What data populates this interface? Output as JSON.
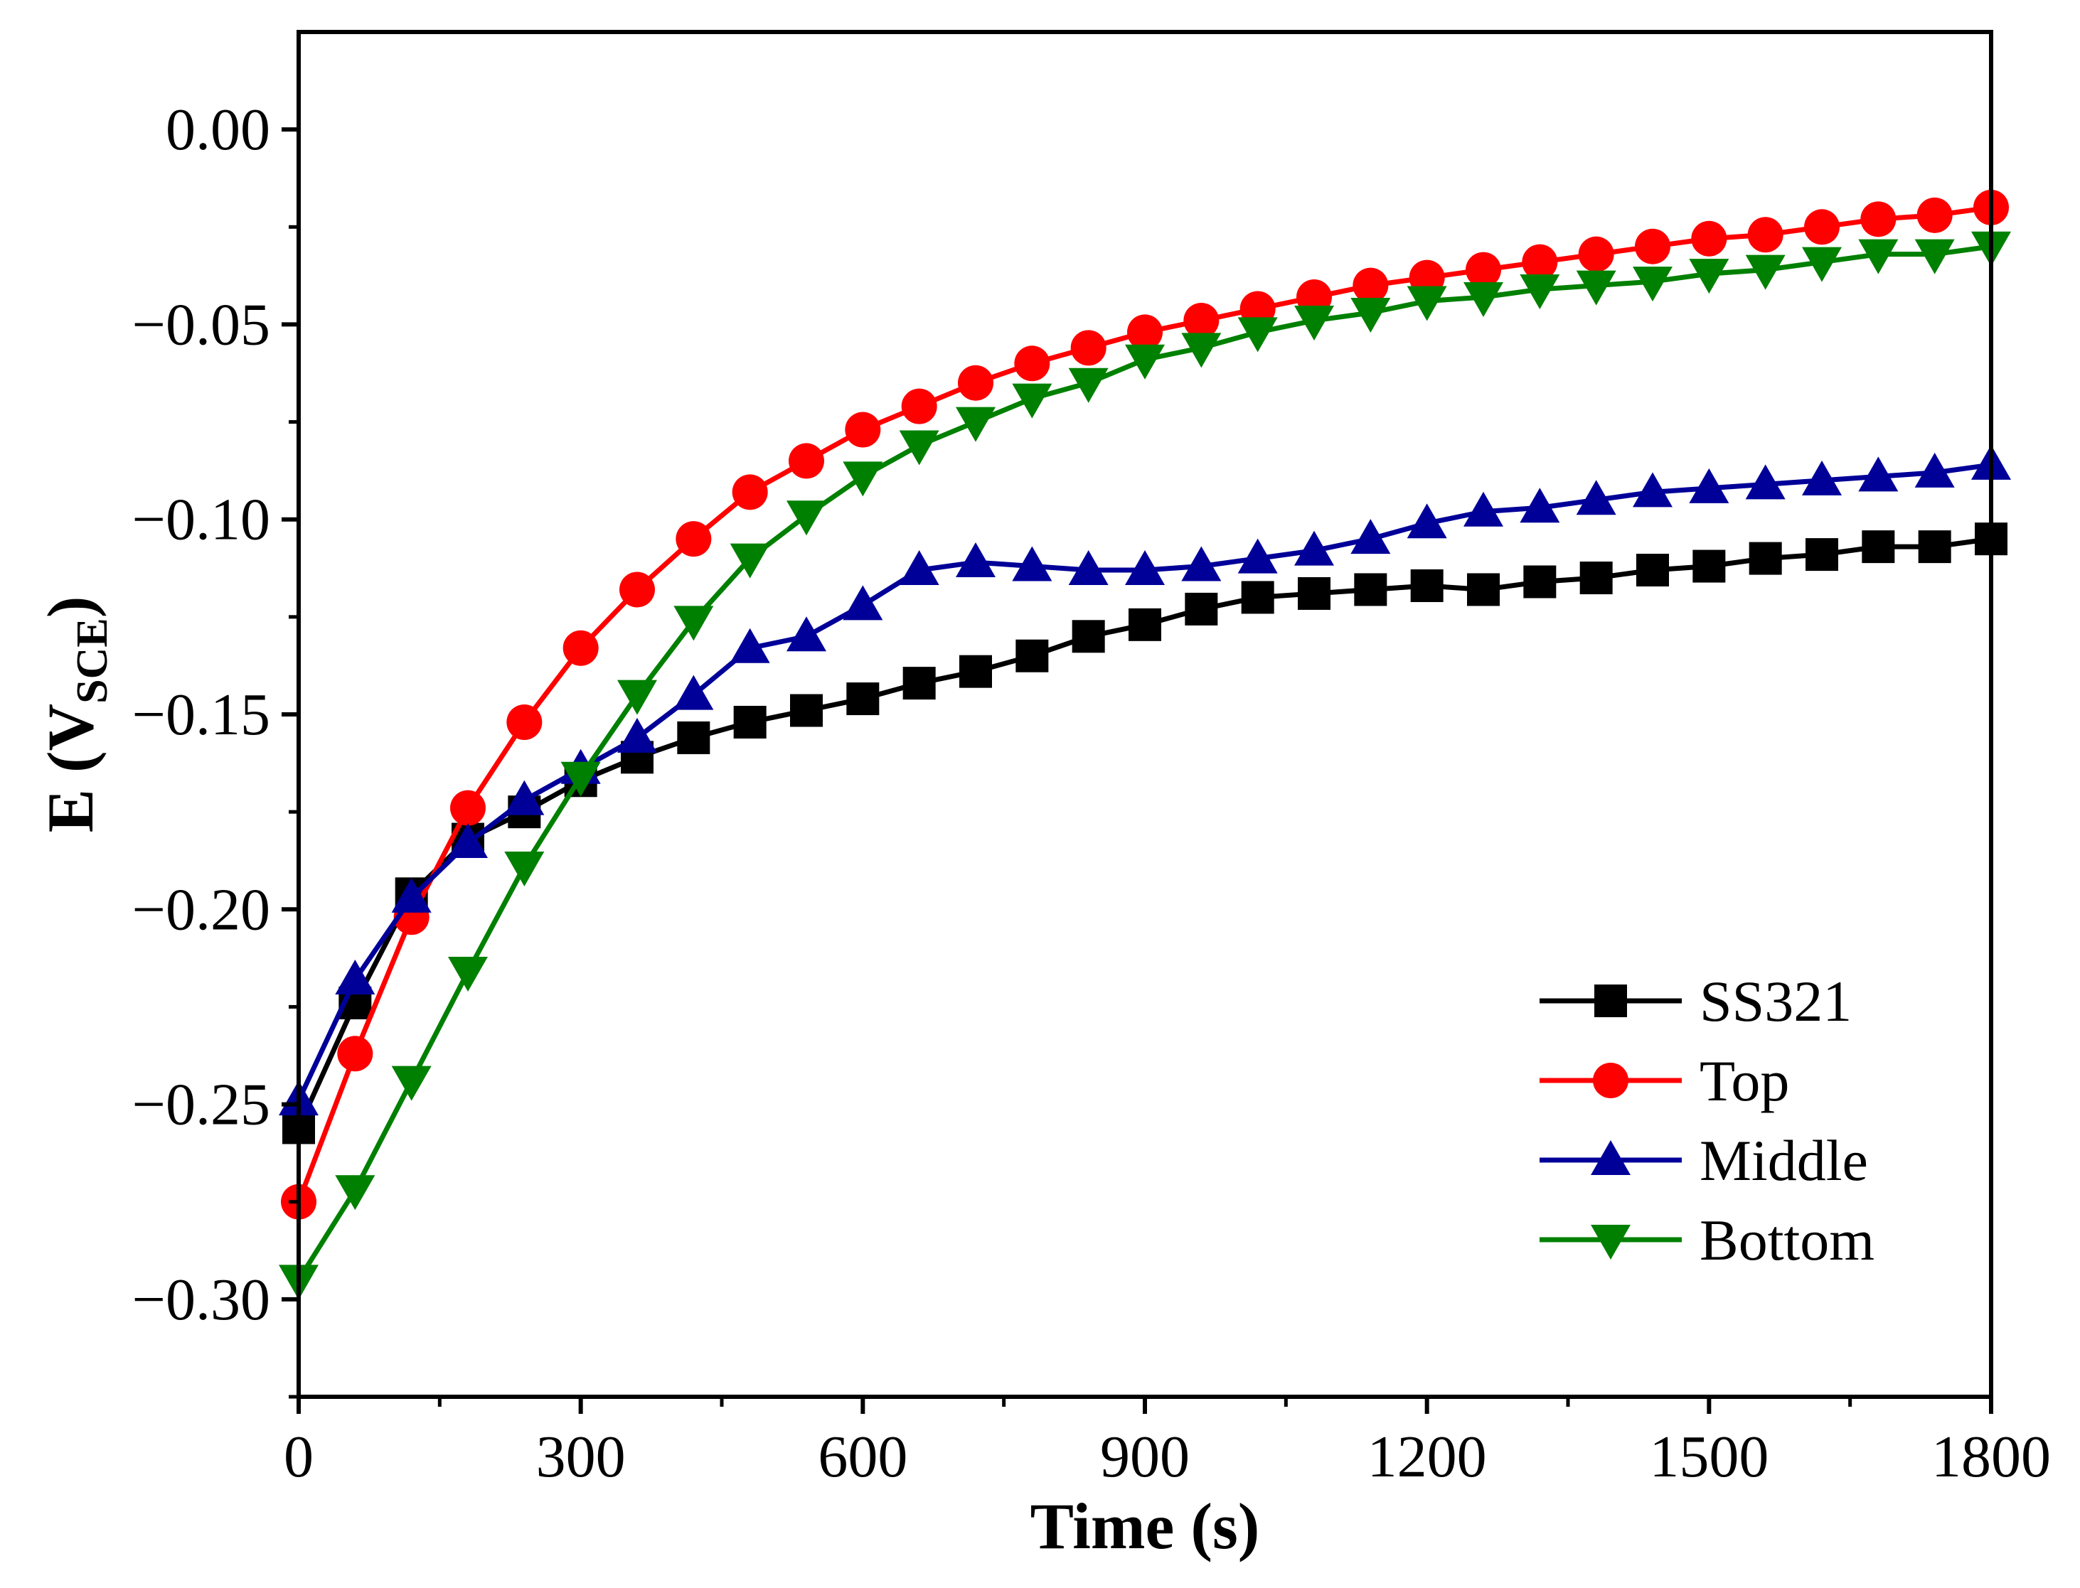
{
  "chart_data": {
    "type": "line",
    "xlabel": "Time (s)",
    "ylabel": {
      "main": "E (V",
      "sub": "SCE",
      "close": ")"
    },
    "xlim": [
      0,
      1800
    ],
    "ylim": [
      -0.325,
      0.025
    ],
    "xticks": [
      0,
      300,
      600,
      900,
      1200,
      1500,
      1800
    ],
    "xtick_labels": [
      "0",
      "300",
      "600",
      "900",
      "1200",
      "1500",
      "1800"
    ],
    "yticks": [
      0.0,
      -0.05,
      -0.1,
      -0.15,
      -0.2,
      -0.25,
      -0.3
    ],
    "ytick_labels": [
      "0.00",
      "−0.05",
      "−0.10",
      "−0.15",
      "−0.20",
      "−0.25",
      "−0.30"
    ],
    "grid": false,
    "legend_position": "bottom-right",
    "x": [
      0,
      60,
      120,
      180,
      240,
      300,
      360,
      420,
      480,
      540,
      600,
      660,
      720,
      780,
      840,
      900,
      960,
      1020,
      1080,
      1140,
      1200,
      1260,
      1320,
      1380,
      1440,
      1500,
      1560,
      1620,
      1680,
      1740,
      1800
    ],
    "series": [
      {
        "name": "SS321",
        "color": "#000000",
        "marker": "square",
        "values": [
          -0.256,
          -0.224,
          -0.196,
          -0.182,
          -0.175,
          -0.167,
          -0.161,
          -0.156,
          -0.152,
          -0.149,
          -0.146,
          -0.142,
          -0.139,
          -0.135,
          -0.13,
          -0.127,
          -0.123,
          -0.12,
          -0.119,
          -0.118,
          -0.117,
          -0.118,
          -0.116,
          -0.115,
          -0.113,
          -0.112,
          -0.11,
          -0.109,
          -0.107,
          -0.107,
          -0.105
        ]
      },
      {
        "name": "Top",
        "color": "#ff0000",
        "marker": "circle",
        "values": [
          -0.275,
          -0.237,
          -0.202,
          -0.174,
          -0.152,
          -0.133,
          -0.118,
          -0.105,
          -0.093,
          -0.085,
          -0.077,
          -0.071,
          -0.065,
          -0.06,
          -0.056,
          -0.052,
          -0.049,
          -0.046,
          -0.043,
          -0.04,
          -0.038,
          -0.036,
          -0.034,
          -0.032,
          -0.03,
          -0.028,
          -0.027,
          -0.025,
          -0.023,
          -0.022,
          -0.02
        ]
      },
      {
        "name": "Middle",
        "color": "#000099",
        "marker": "triangle-up",
        "values": [
          -0.249,
          -0.218,
          -0.197,
          -0.183,
          -0.172,
          -0.164,
          -0.156,
          -0.145,
          -0.133,
          -0.13,
          -0.122,
          -0.113,
          -0.111,
          -0.112,
          -0.113,
          -0.113,
          -0.112,
          -0.11,
          -0.108,
          -0.105,
          -0.101,
          -0.098,
          -0.097,
          -0.095,
          -0.093,
          -0.092,
          -0.091,
          -0.09,
          -0.089,
          -0.088,
          -0.086
        ]
      },
      {
        "name": "Bottom",
        "color": "#008000",
        "marker": "triangle-down",
        "values": [
          -0.295,
          -0.272,
          -0.244,
          -0.216,
          -0.189,
          -0.166,
          -0.145,
          -0.126,
          -0.11,
          -0.099,
          -0.089,
          -0.081,
          -0.075,
          -0.069,
          -0.065,
          -0.059,
          -0.056,
          -0.052,
          -0.049,
          -0.047,
          -0.044,
          -0.043,
          -0.041,
          -0.04,
          -0.039,
          -0.037,
          -0.036,
          -0.034,
          -0.032,
          -0.032,
          -0.03
        ]
      }
    ]
  }
}
